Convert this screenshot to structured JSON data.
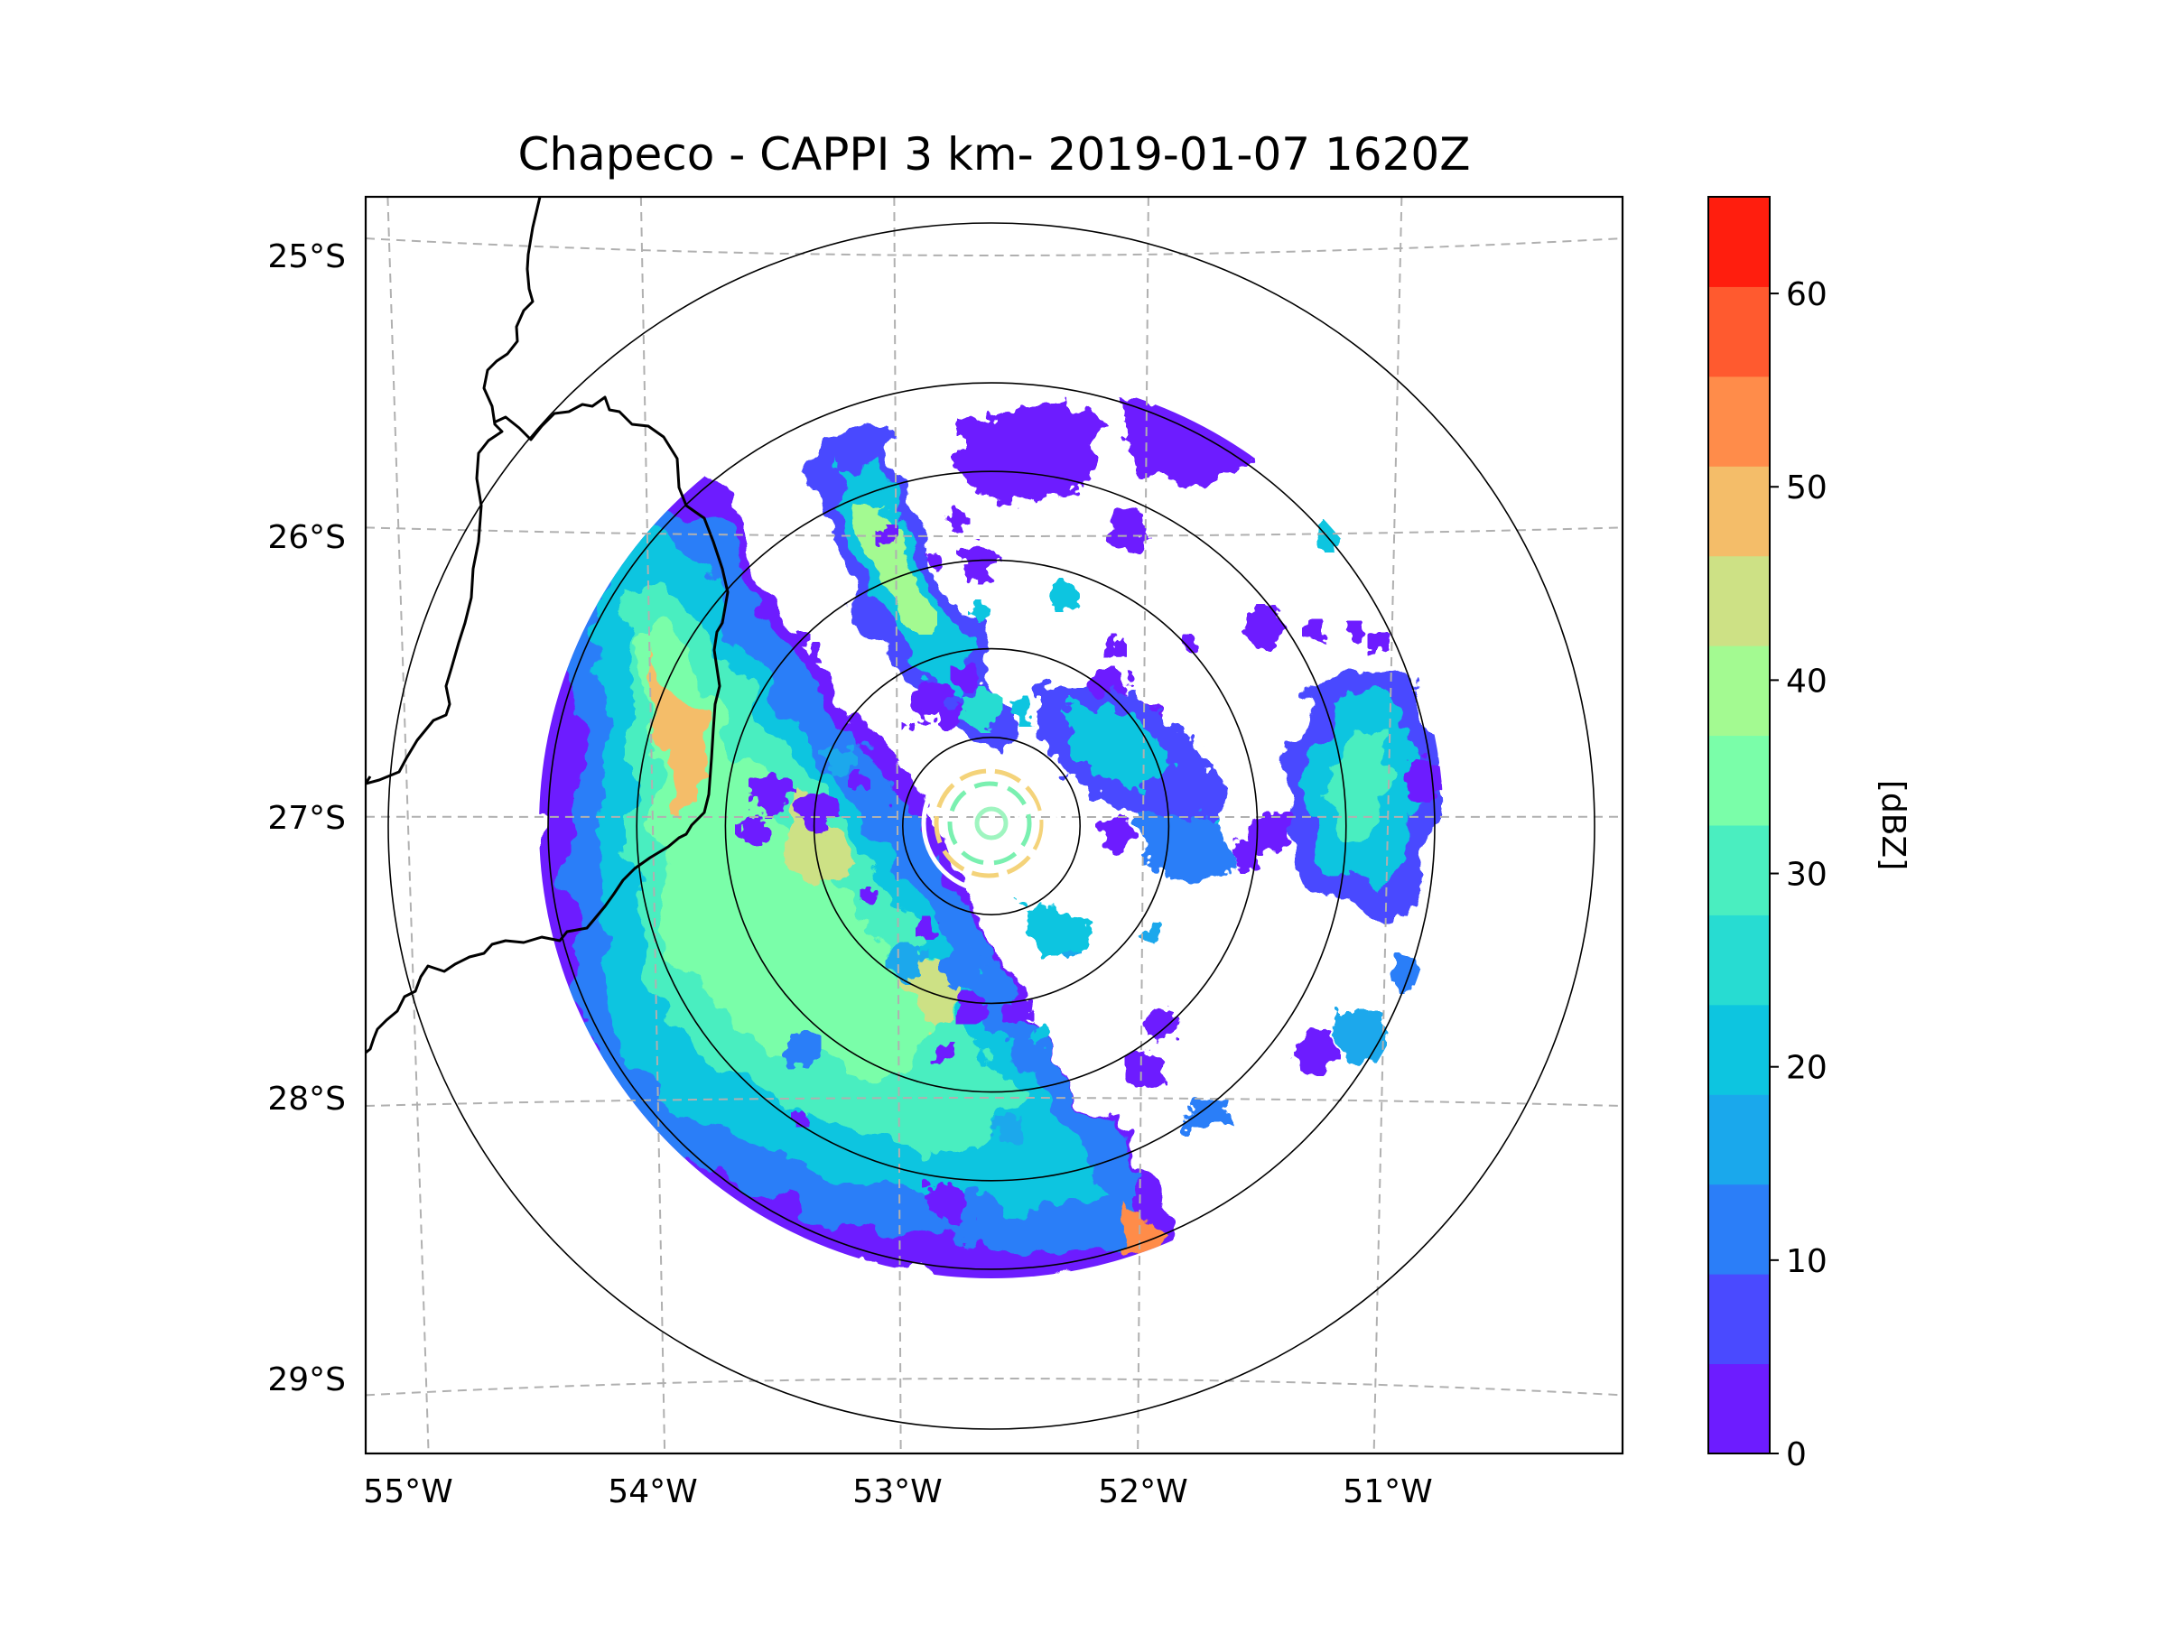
{
  "chart_data": {
    "type": "heatmap",
    "title": "Chapeco - CAPPI 3 km- 2019-01-07 1620Z",
    "x_ticks": [
      "55°W",
      "54°W",
      "53°W",
      "52°W",
      "51°W"
    ],
    "y_ticks": [
      "25°S",
      "26°S",
      "27°S",
      "28°S",
      "29°S"
    ],
    "x_range_deg": [
      -55.17,
      -50.08
    ],
    "y_range_deg": [
      -29.3,
      -24.8
    ],
    "grid": "dashed gray lon/lat gridlines",
    "radar_center": {
      "lon": -52.6,
      "lat": -27.03
    },
    "range_rings_km": [
      50,
      100,
      150,
      200,
      250
    ],
    "colorbar": {
      "label": "[dBZ]",
      "min": 0,
      "max": 65,
      "step": 5,
      "tick_labels": [
        "0",
        "10",
        "20",
        "30",
        "40",
        "50",
        "60"
      ],
      "colors": [
        "#6d1cff",
        "#4a4aff",
        "#2b7ef8",
        "#1aa8ec",
        "#0dc5e0",
        "#27dcd2",
        "#4aeec0",
        "#7afea9",
        "#a3fa91",
        "#cde185",
        "#f4bd69",
        "#ff8c4a",
        "#ff5a2f",
        "#ff1e0e"
      ]
    },
    "echo_regions": [
      {
        "name": "western-broad-echo",
        "dbz_range": [
          5,
          50
        ],
        "peak_dbz": 52,
        "extent": "west of radar, 53.1°W–54.4°W, 26.0°S–28.6°S"
      },
      {
        "name": "northwest-band",
        "dbz_range": [
          5,
          45
        ],
        "peak_dbz": 48,
        "extent": "northwest band toward 52.5°W, 25.8°S–26.7°S"
      },
      {
        "name": "eastern-cell",
        "dbz_range": [
          5,
          40
        ],
        "peak_dbz": 45,
        "extent": "51.0°W–50.8°W, 26.5°S–27.4°S"
      },
      {
        "name": "near-radar-clutter",
        "dbz_range": [
          25,
          45
        ],
        "peak_dbz": 45,
        "extent": "concentric rings near radar center"
      }
    ]
  }
}
